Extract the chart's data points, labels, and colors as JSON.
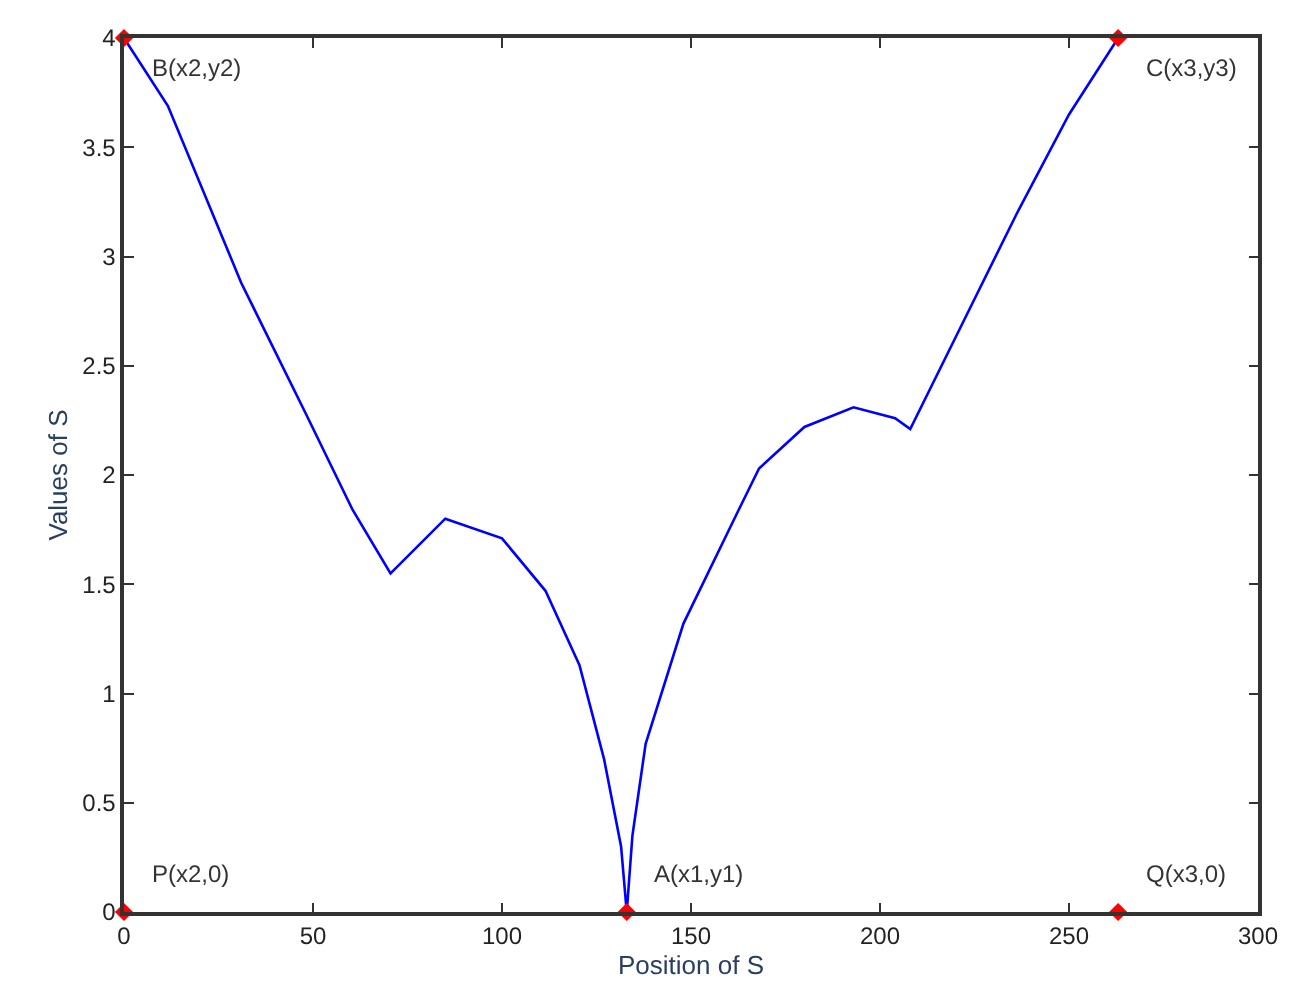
{
  "chart_data": {
    "type": "line",
    "xlabel": "Position of S",
    "ylabel": "Values of S",
    "xlim": [
      0,
      300
    ],
    "ylim": [
      0,
      4
    ],
    "xticks": [
      0,
      50,
      100,
      150,
      200,
      250,
      300
    ],
    "yticks": [
      0,
      0.5,
      1,
      1.5,
      2,
      2.5,
      3,
      3.5,
      4
    ],
    "series": [
      {
        "color": "#0000ff",
        "marker": "none",
        "x": [
          0,
          11.6,
          31,
          48.4,
          60.5,
          70.5,
          85,
          100,
          111.5,
          120.5,
          127,
          131.5,
          133,
          134.5,
          138,
          148,
          162.6,
          168,
          180,
          193,
          204,
          208,
          222,
          236,
          250,
          263
        ],
        "values": [
          4,
          3.69,
          2.88,
          2.27,
          1.84,
          1.55,
          1.8,
          1.71,
          1.47,
          1.13,
          0.7,
          0.3,
          0,
          0.35,
          0.77,
          1.32,
          1.84,
          2.03,
          2.22,
          2.31,
          2.26,
          2.21,
          2.7,
          3.19,
          3.65,
          4
        ]
      },
      {
        "type": "scatter",
        "color": "#ff0000",
        "marker": "diamond",
        "x": [
          0,
          0,
          133,
          263,
          263
        ],
        "values": [
          4,
          0,
          0,
          4,
          0
        ]
      }
    ],
    "annotations": [
      {
        "text": "B(x2,y2)",
        "x": 0,
        "y": 4
      },
      {
        "text": "P(x2,0)",
        "x": 0,
        "y": 0
      },
      {
        "text": "A(x1,y1)",
        "x": 133,
        "y": 0
      },
      {
        "text": "C(x3,y3)",
        "x": 263,
        "y": 4
      },
      {
        "text": "Q(x3,0)",
        "x": 263,
        "y": 0
      }
    ]
  }
}
